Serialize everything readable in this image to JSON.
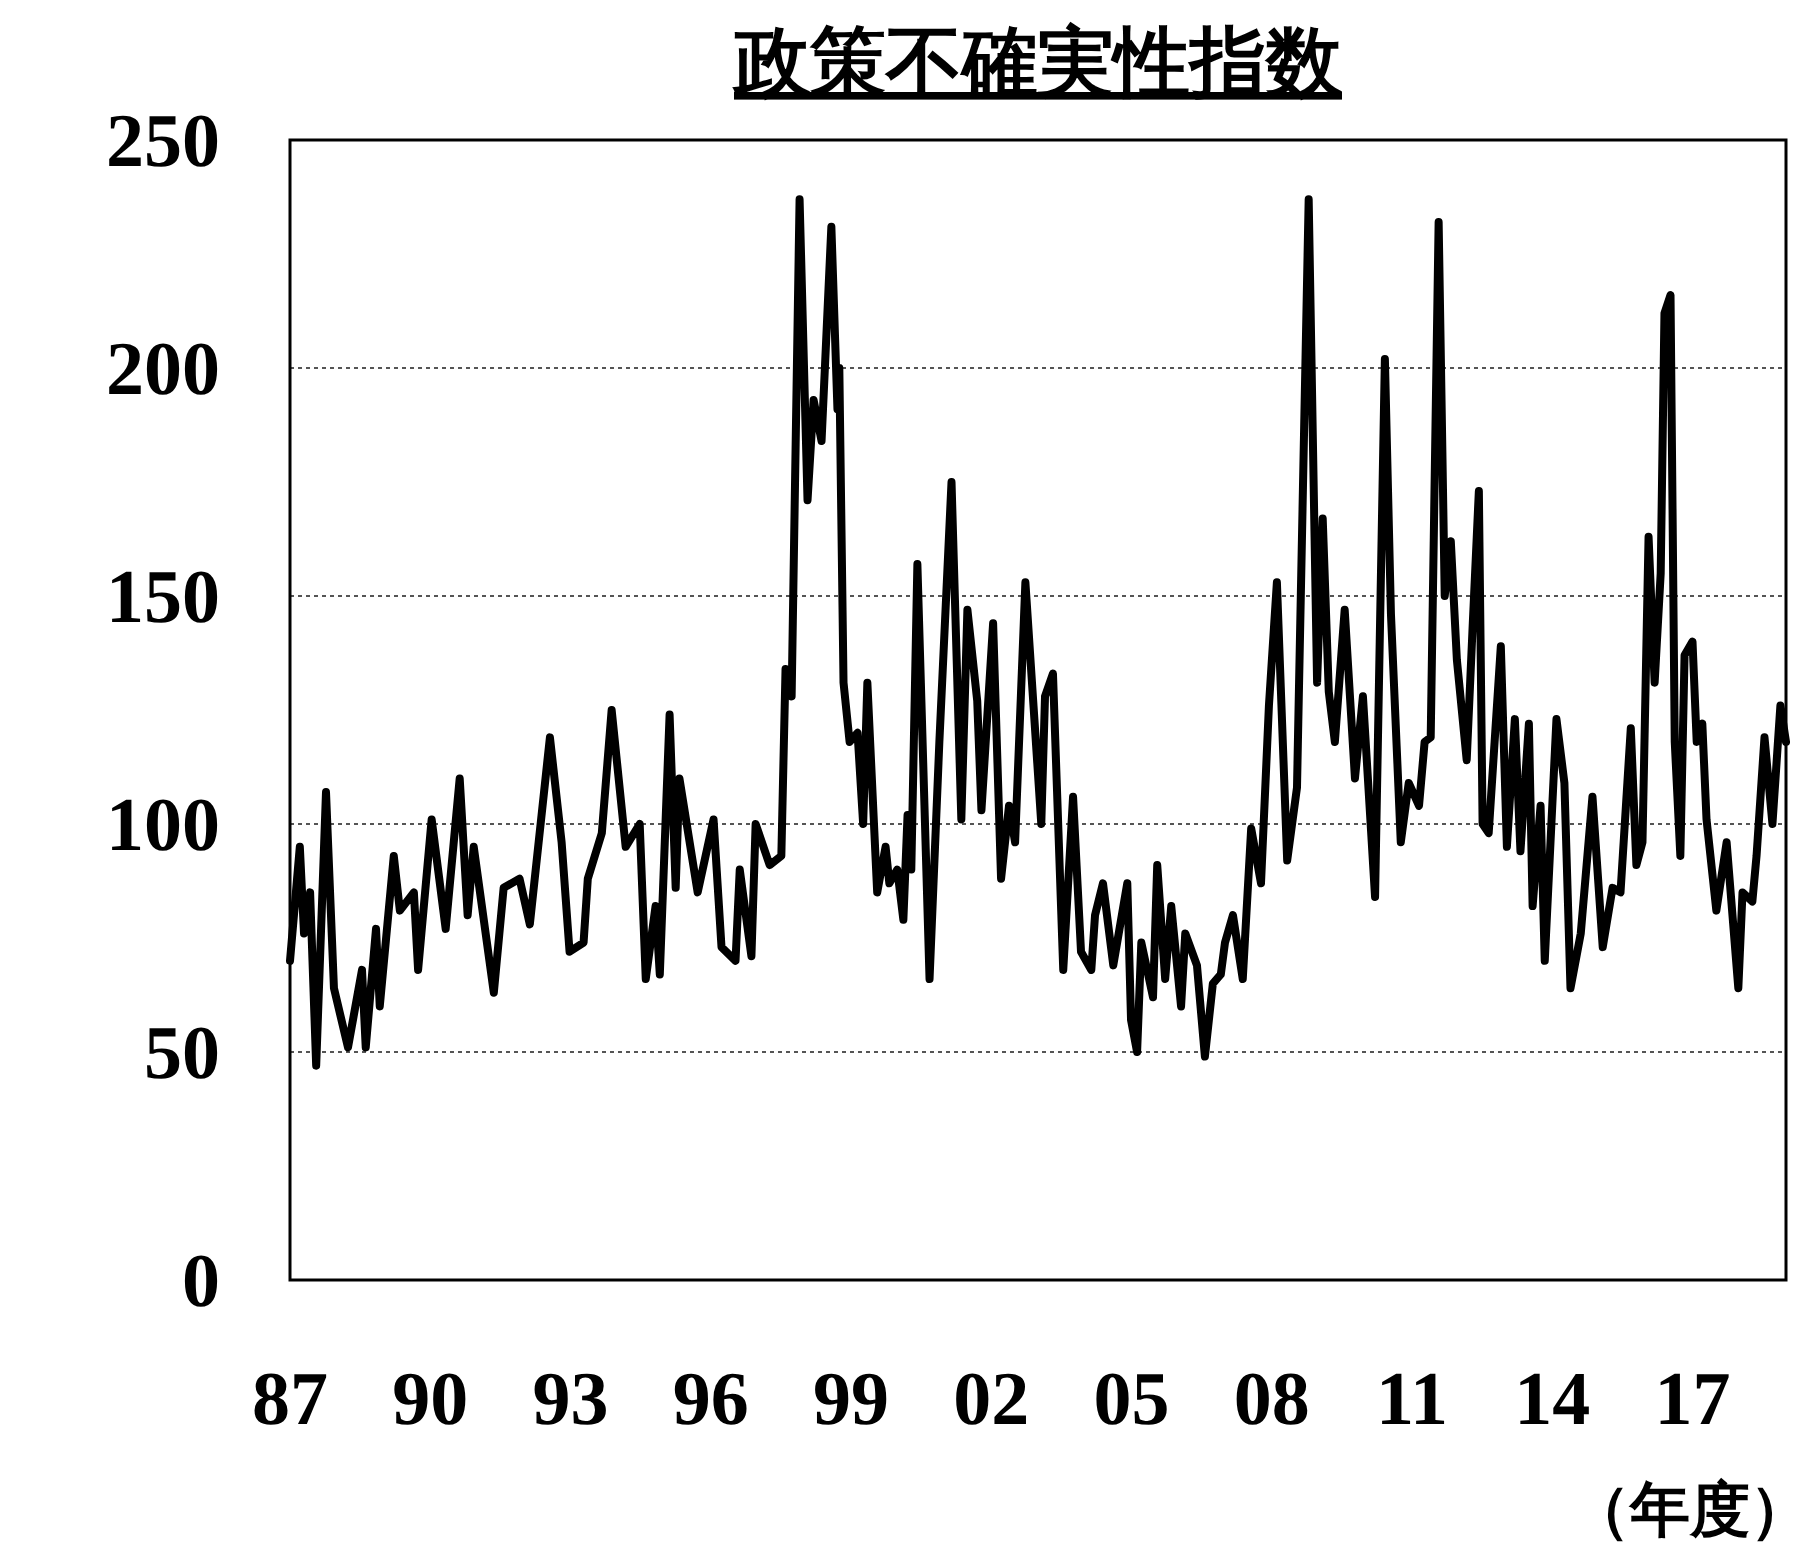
{
  "chart_data": {
    "type": "line",
    "title": "政策不確実性指数",
    "xlabel": "（年度）",
    "x": [
      1987.0,
      1987.21,
      1987.3,
      1987.43,
      1987.56,
      1987.77,
      1987.94,
      1988.24,
      1988.54,
      1988.62,
      1988.84,
      1988.92,
      1989.22,
      1989.35,
      1989.65,
      1989.74,
      1990.03,
      1990.33,
      1990.63,
      1990.8,
      1990.93,
      1991.36,
      1991.57,
      1991.91,
      1992.13,
      1992.56,
      1992.81,
      1992.98,
      1993.28,
      1993.37,
      1993.67,
      1993.88,
      1994.18,
      1994.48,
      1994.61,
      1994.82,
      1994.91,
      1995.12,
      1995.25,
      1995.33,
      1995.72,
      1996.06,
      1996.23,
      1996.53,
      1996.62,
      1996.87,
      1996.96,
      1997.26,
      1997.51,
      1997.6,
      1997.73,
      1997.9,
      1998.07,
      1998.2,
      1998.37,
      1998.58,
      1998.71,
      1998.75,
      1998.84,
      1998.97,
      1999.14,
      1999.26,
      1999.35,
      1999.56,
      1999.74,
      1999.82,
      1999.99,
      2000.12,
      2000.21,
      2000.29,
      2000.42,
      2000.68,
      2000.89,
      2001.15,
      2001.36,
      2001.49,
      2001.7,
      2001.79,
      2002.04,
      2002.21,
      2002.38,
      2002.51,
      2002.73,
      2003.07,
      2003.15,
      2003.32,
      2003.54,
      2003.75,
      2003.92,
      2004.14,
      2004.22,
      2004.39,
      2004.61,
      2004.91,
      2004.99,
      2005.12,
      2005.21,
      2005.46,
      2005.55,
      2005.72,
      2005.85,
      2006.06,
      2006.15,
      2006.4,
      2006.57,
      2006.74,
      2006.91,
      2007.0,
      2007.17,
      2007.38,
      2007.56,
      2007.77,
      2007.94,
      2008.11,
      2008.33,
      2008.54,
      2008.79,
      2008.97,
      2009.09,
      2009.22,
      2009.35,
      2009.56,
      2009.78,
      2009.95,
      2010.21,
      2010.42,
      2010.55,
      2010.76,
      2010.93,
      2011.15,
      2011.27,
      2011.4,
      2011.57,
      2011.7,
      2011.83,
      2011.96,
      2012.17,
      2012.3,
      2012.43,
      2012.51,
      2012.64,
      2012.9,
      2013.03,
      2013.2,
      2013.32,
      2013.5,
      2013.58,
      2013.75,
      2013.84,
      2014.09,
      2014.26,
      2014.39,
      2014.61,
      2014.86,
      2015.08,
      2015.29,
      2015.46,
      2015.68,
      2015.8,
      2015.93,
      2016.06,
      2016.19,
      2016.32,
      2016.4,
      2016.53,
      2016.62,
      2016.74,
      2016.83,
      2017.0,
      2017.09,
      2017.21,
      2017.3,
      2017.51,
      2017.73,
      2017.98,
      2018.07,
      2018.28,
      2018.37,
      2018.54,
      2018.71,
      2018.88,
      2019.0
    ],
    "values": [
      70,
      95,
      76,
      85,
      47,
      107,
      64,
      51,
      68,
      51,
      77,
      60,
      93,
      81,
      85,
      68,
      101,
      77,
      110,
      80,
      95,
      63,
      86,
      88,
      78,
      119,
      96,
      72,
      74,
      88,
      98,
      125,
      95,
      100,
      66,
      82,
      67,
      124,
      86,
      110,
      85,
      101,
      73,
      70,
      90,
      71,
      100,
      91,
      93,
      134,
      128,
      237,
      171,
      193,
      184,
      231,
      191,
      200,
      131,
      118,
      120,
      100,
      131,
      85,
      95,
      87,
      90,
      79,
      102,
      90,
      157,
      66,
      118,
      175,
      101,
      147,
      127,
      103,
      144,
      88,
      104,
      96,
      153,
      100,
      128,
      133,
      68,
      106,
      72,
      68,
      80,
      87,
      69,
      87,
      57,
      50,
      74,
      62,
      91,
      66,
      82,
      60,
      76,
      69,
      49,
      65,
      67,
      74,
      80,
      66,
      99,
      87,
      126,
      153,
      92,
      108,
      237,
      131,
      167,
      129,
      118,
      147,
      110,
      128,
      84,
      202,
      146,
      96,
      109,
      104,
      118,
      119,
      232,
      150,
      162,
      136,
      114,
      144,
      173,
      100,
      98,
      139,
      95,
      123,
      94,
      122,
      82,
      104,
      70,
      123,
      109,
      64,
      76,
      106,
      73,
      86,
      85,
      121,
      91,
      96,
      163,
      131,
      155,
      212,
      216,
      118,
      93,
      137,
      140,
      118,
      122,
      101,
      81,
      96,
      64,
      85,
      83,
      93,
      119,
      100,
      126,
      118
    ],
    "color": "#000000",
    "xlim": [
      1987,
      2019
    ],
    "xticks": [
      {
        "value": 1987,
        "label": "87"
      },
      {
        "value": 1990,
        "label": "90"
      },
      {
        "value": 1993,
        "label": "93"
      },
      {
        "value": 1996,
        "label": "96"
      },
      {
        "value": 1999,
        "label": "99"
      },
      {
        "value": 2002,
        "label": "02"
      },
      {
        "value": 2005,
        "label": "05"
      },
      {
        "value": 2008,
        "label": "08"
      },
      {
        "value": 2011,
        "label": "11"
      },
      {
        "value": 2014,
        "label": "14"
      },
      {
        "value": 2017,
        "label": "17"
      }
    ],
    "ylim": [
      0,
      250
    ],
    "yticks": [
      0,
      50,
      100,
      150,
      200,
      250
    ],
    "grid": "y"
  }
}
